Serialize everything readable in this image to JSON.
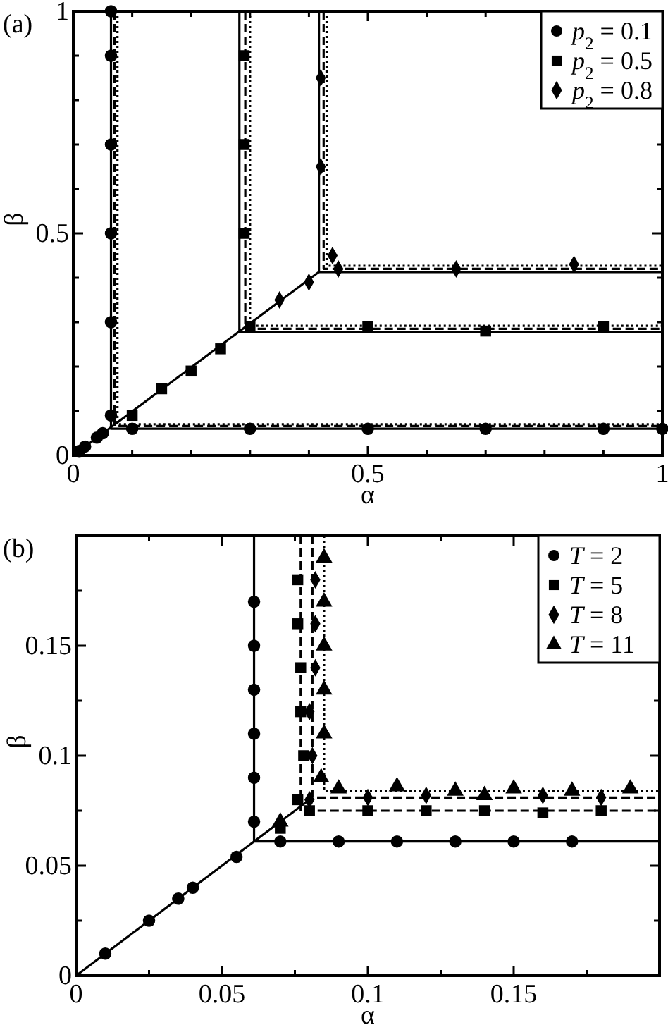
{
  "chart_data": [
    {
      "type": "scatter",
      "title": "(a)",
      "xlabel": "α",
      "ylabel": "β",
      "xlim": [
        0,
        1
      ],
      "ylim": [
        0,
        1
      ],
      "xticks": [
        0,
        {
          "value": 0.1,
          "label": null
        },
        {
          "value": 0.2,
          "label": null
        },
        {
          "value": 0.3,
          "label": null
        },
        {
          "value": 0.4,
          "label": null
        },
        0.5,
        {
          "value": 0.6,
          "label": null
        },
        {
          "value": 0.7,
          "label": null
        },
        {
          "value": 0.8,
          "label": null
        },
        {
          "value": 0.9,
          "label": null
        },
        1
      ],
      "yticks": [
        0,
        {
          "value": 0.1,
          "label": null
        },
        {
          "value": 0.2,
          "label": null
        },
        {
          "value": 0.3,
          "label": null
        },
        {
          "value": 0.4,
          "label": null
        },
        0.5,
        {
          "value": 0.6,
          "label": null
        },
        {
          "value": 0.7,
          "label": null
        },
        {
          "value": 0.8,
          "label": null
        },
        {
          "value": 0.9,
          "label": null
        },
        1
      ],
      "legend": "top right",
      "grid": false,
      "series": [
        {
          "type": "line",
          "line_style": "solid",
          "color": "#000000",
          "x": [
            0,
            0.417
          ],
          "values": [
            0,
            0.413
          ]
        },
        {
          "type": "line",
          "line_style": "solid",
          "color": "#000000",
          "x": [
            0.064,
            0.064,
            1
          ],
          "values": [
            1,
            0.06,
            0.06
          ]
        },
        {
          "type": "line",
          "line_style": "dashed",
          "color": "#000000",
          "x": [
            0.07,
            0.07,
            1
          ],
          "values": [
            1,
            0.066,
            0.066
          ]
        },
        {
          "type": "line",
          "line_style": "dotted",
          "color": "#000000",
          "x": [
            0.075,
            0.075,
            1
          ],
          "values": [
            1,
            0.07,
            0.07
          ]
        },
        {
          "type": "line",
          "line_style": "solid",
          "color": "#000000",
          "x": [
            0.282,
            0.282,
            1
          ],
          "values": [
            1,
            0.277,
            0.277
          ]
        },
        {
          "type": "line",
          "line_style": "dashed",
          "color": "#000000",
          "x": [
            0.292,
            0.292,
            1
          ],
          "values": [
            1,
            0.285,
            0.285
          ]
        },
        {
          "type": "line",
          "line_style": "dotted",
          "color": "#000000",
          "x": [
            0.3,
            0.3,
            1
          ],
          "values": [
            1,
            0.292,
            0.292
          ]
        },
        {
          "type": "line",
          "line_style": "solid",
          "color": "#000000",
          "x": [
            0.417,
            0.417,
            1
          ],
          "values": [
            1,
            0.413,
            0.413
          ]
        },
        {
          "type": "line",
          "line_style": "dashed",
          "color": "#000000",
          "x": [
            0.425,
            0.425,
            1
          ],
          "values": [
            1,
            0.42,
            0.42
          ]
        },
        {
          "type": "line",
          "line_style": "dotted",
          "color": "#000000",
          "x": [
            0.43,
            0.43,
            1
          ],
          "values": [
            1,
            0.427,
            0.427
          ]
        },
        {
          "marker": "circle",
          "name": "p$_{2}$ = 0.1",
          "color": "#000000",
          "x": [
            0.01,
            0.02,
            0.04,
            0.05,
            0.064,
            0.064,
            0.064,
            0.064,
            0.064,
            0.064,
            0.1,
            0.3,
            0.5,
            0.7,
            0.9,
            1.0
          ],
          "values": [
            0.01,
            0.02,
            0.04,
            0.05,
            0.09,
            0.3,
            0.5,
            0.7,
            0.9,
            1.0,
            0.06,
            0.06,
            0.06,
            0.06,
            0.06,
            0.06
          ]
        },
        {
          "marker": "square",
          "name": "p$_{2}$ = 0.5",
          "color": "#000000",
          "x": [
            0.1,
            0.15,
            0.2,
            0.25,
            0.29,
            0.29,
            0.29,
            0.3,
            0.5,
            0.7,
            0.9
          ],
          "values": [
            0.09,
            0.15,
            0.19,
            0.24,
            0.5,
            0.7,
            0.9,
            0.29,
            0.29,
            0.28,
            0.29
          ]
        },
        {
          "marker": "diamond",
          "name": "p$_{2}$ = 0.8",
          "color": "#000000",
          "x": [
            0.35,
            0.4,
            0.42,
            0.42,
            0.44,
            0.45,
            0.65,
            0.85
          ],
          "values": [
            0.35,
            0.39,
            0.85,
            0.65,
            0.45,
            0.42,
            0.42,
            0.43
          ]
        }
      ]
    },
    {
      "type": "scatter",
      "title": "(b)",
      "xlabel": "α",
      "ylabel": "β",
      "xlim": [
        0,
        0.2
      ],
      "ylim": [
        0,
        0.2
      ],
      "xticks": [
        0,
        {
          "value": 0.025,
          "label": null
        },
        0.05,
        {
          "value": 0.075,
          "label": null
        },
        0.1,
        {
          "value": 0.125,
          "label": null
        },
        0.15,
        {
          "value": 0.175,
          "label": null
        }
      ],
      "yticks": [
        0,
        {
          "value": 0.025,
          "label": null
        },
        0.05,
        {
          "value": 0.075,
          "label": null
        },
        0.1,
        {
          "value": 0.125,
          "label": null
        },
        0.15,
        {
          "value": 0.175,
          "label": null
        }
      ],
      "legend": "top right",
      "grid": false,
      "series": [
        {
          "type": "line",
          "line_style": "solid",
          "color": "#000000",
          "x": [
            0,
            0.081
          ],
          "values": [
            0,
            0.081
          ]
        },
        {
          "type": "line",
          "line_style": "solid",
          "color": "#000000",
          "x": [
            0.061,
            0.061,
            0.2
          ],
          "values": [
            0.2,
            0.061,
            0.061
          ]
        },
        {
          "type": "line",
          "line_style": "dashed",
          "color": "#000000",
          "x": [
            0.077,
            0.077,
            0.2
          ],
          "values": [
            0.2,
            0.075,
            0.075
          ]
        },
        {
          "type": "line",
          "line_style": "dashed",
          "color": "#000000",
          "x": [
            0.081,
            0.081,
            0.2
          ],
          "values": [
            0.2,
            0.081,
            0.081
          ]
        },
        {
          "type": "line",
          "line_style": "dotted",
          "color": "#000000",
          "x": [
            0.085,
            0.085,
            0.2
          ],
          "values": [
            0.2,
            0.084,
            0.084
          ]
        },
        {
          "marker": "circle",
          "name": "T = 2",
          "color": "#000000",
          "x": [
            0.01,
            0.025,
            0.035,
            0.04,
            0.055,
            0.061,
            0.061,
            0.061,
            0.061,
            0.061,
            0.061,
            0.07,
            0.09,
            0.11,
            0.13,
            0.15,
            0.17
          ],
          "values": [
            0.01,
            0.025,
            0.035,
            0.04,
            0.054,
            0.07,
            0.09,
            0.11,
            0.13,
            0.15,
            0.17,
            0.061,
            0.061,
            0.061,
            0.061,
            0.061,
            0.061
          ]
        },
        {
          "marker": "square",
          "name": "T = 5",
          "color": "#000000",
          "x": [
            0.07,
            0.076,
            0.078,
            0.077,
            0.077,
            0.076,
            0.076,
            0.08,
            0.1,
            0.12,
            0.14,
            0.16,
            0.18
          ],
          "values": [
            0.067,
            0.08,
            0.1,
            0.12,
            0.14,
            0.16,
            0.18,
            0.075,
            0.075,
            0.075,
            0.075,
            0.074,
            0.075
          ]
        },
        {
          "marker": "diamond",
          "name": "T = 8",
          "color": "#000000",
          "x": [
            0.08,
            0.081,
            0.08,
            0.082,
            0.082,
            0.082,
            0.1,
            0.12,
            0.16,
            0.18
          ],
          "values": [
            0.08,
            0.1,
            0.12,
            0.14,
            0.16,
            0.18,
            0.081,
            0.082,
            0.082,
            0.081
          ]
        },
        {
          "marker": "triangle",
          "name": "T = 11",
          "color": "#000000",
          "x": [
            0.07,
            0.084,
            0.085,
            0.085,
            0.085,
            0.085,
            0.085,
            0.09,
            0.11,
            0.13,
            0.15,
            0.17,
            0.19,
            0.14
          ],
          "values": [
            0.07,
            0.09,
            0.11,
            0.13,
            0.15,
            0.17,
            0.19,
            0.085,
            0.086,
            0.084,
            0.085,
            0.084,
            0.085,
            0.082
          ]
        }
      ]
    }
  ]
}
